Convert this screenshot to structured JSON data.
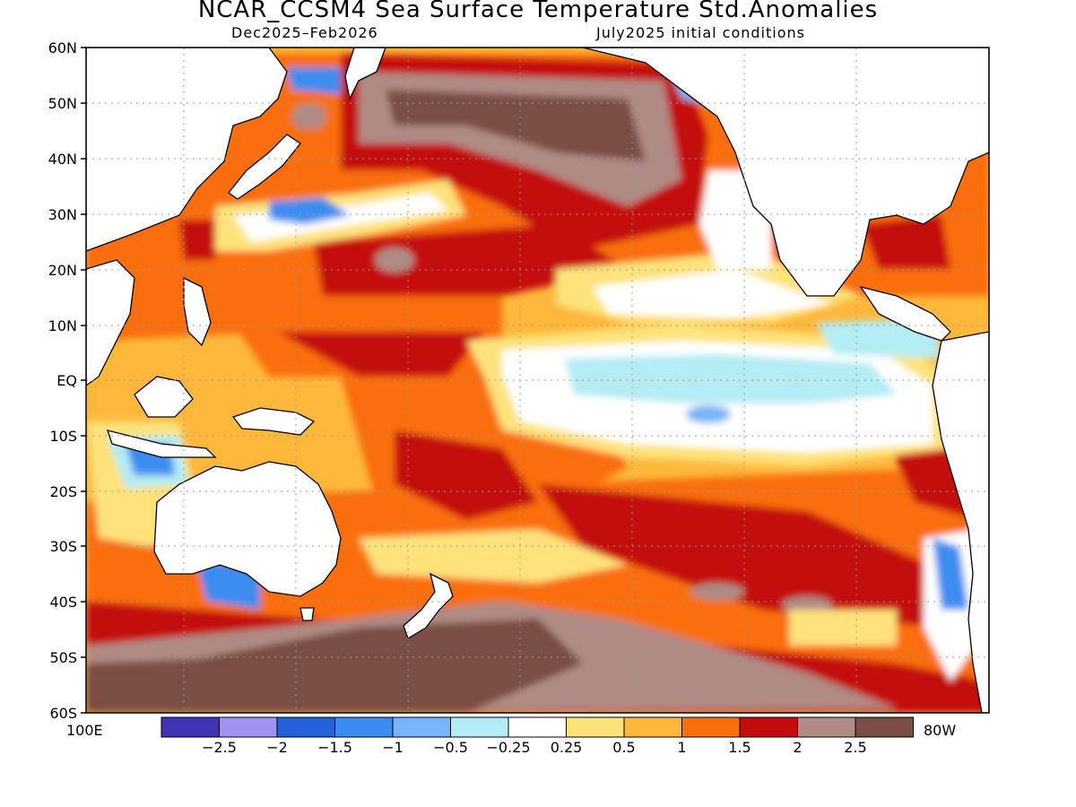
{
  "title": "NCAR_CCSM4 Sea Surface Temperature Std.Anomalies",
  "subtitle_left": "Dec2025–Feb2026",
  "subtitle_right": "July2025 initial conditions",
  "lat_labels": [
    "60N",
    "50N",
    "40N",
    "30N",
    "20N",
    "10N",
    "EQ",
    "10S",
    "20S",
    "30S",
    "40S",
    "50S",
    "60S"
  ],
  "lon_left": "100E",
  "lon_right": "80W",
  "colorbar": {
    "labels": [
      "-2.5",
      "-2",
      "-1.5",
      "-1",
      "-0.5",
      "-0.25",
      "0.25",
      "0.5",
      "1",
      "1.5",
      "2",
      "2.5"
    ],
    "colors": [
      "#4034b4",
      "#a093f0",
      "#2462dc",
      "#3c8cf0",
      "#78b4f8",
      "#b4ecf4",
      "#ffffff",
      "#fee27a",
      "#fdb83c",
      "#fa6e0c",
      "#c40c0c",
      "#b08a84",
      "#7a4e44"
    ]
  }
}
